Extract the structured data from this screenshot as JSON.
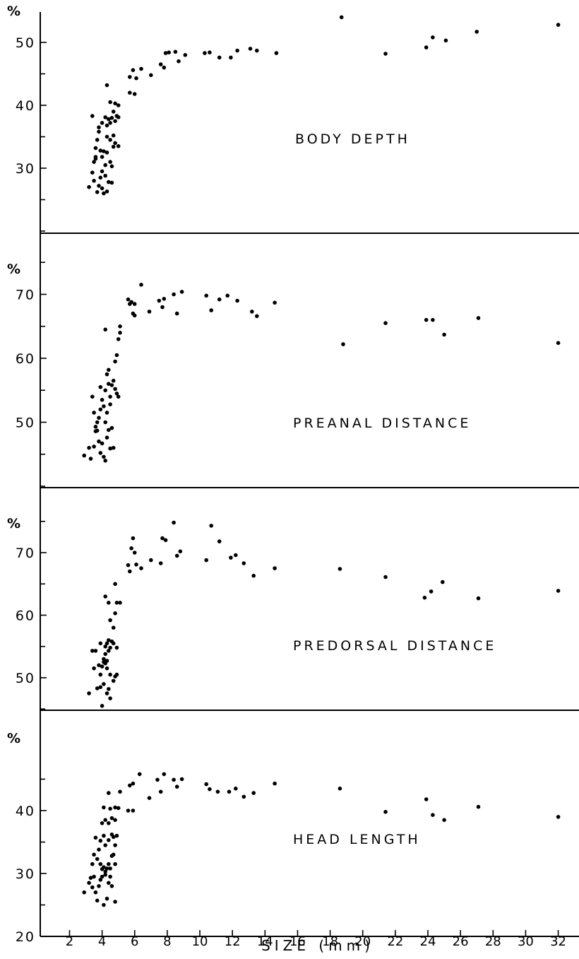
{
  "colors": {
    "ink": "#000000",
    "background": "#ffffff"
  },
  "x_axis": {
    "title": "SIZE (mm)",
    "ticks": [
      2,
      4,
      6,
      8,
      10,
      12,
      14,
      16,
      18,
      20,
      22,
      24,
      26,
      28,
      30,
      32
    ],
    "tick_labels": [
      "2",
      "4",
      "6",
      "8",
      "10",
      "12",
      "14",
      "16",
      "18",
      "20",
      "22",
      "24",
      "26",
      "28",
      "30",
      "32"
    ],
    "range": [
      0,
      33
    ]
  },
  "chart_data": [
    {
      "type": "scatter",
      "label": "BODY DEPTH",
      "unit": "%",
      "xlabel": "SIZE (mm)",
      "ylim": [
        20,
        55
      ],
      "y_ticks": [
        30,
        40,
        50
      ],
      "y_tick_labels": [
        "30",
        "40",
        "50"
      ],
      "grid": false,
      "points": [
        [
          3.2,
          27.0
        ],
        [
          3.4,
          29.3
        ],
        [
          3.5,
          31.0
        ],
        [
          3.6,
          31.5
        ],
        [
          3.5,
          28.0
        ],
        [
          3.7,
          26.2
        ],
        [
          3.8,
          27.2
        ],
        [
          3.9,
          28.5
        ],
        [
          4.0,
          26.8
        ],
        [
          4.1,
          26.0
        ],
        [
          4.2,
          28.8
        ],
        [
          4.3,
          26.3
        ],
        [
          4.4,
          27.8
        ],
        [
          4.6,
          27.7
        ],
        [
          3.6,
          33.2
        ],
        [
          3.7,
          34.5
        ],
        [
          3.8,
          35.8
        ],
        [
          3.9,
          32.8
        ],
        [
          4.0,
          31.8
        ],
        [
          4.1,
          32.7
        ],
        [
          4.2,
          30.5
        ],
        [
          4.3,
          32.5
        ],
        [
          4.5,
          31.0
        ],
        [
          4.6,
          30.3
        ],
        [
          4.7,
          33.4
        ],
        [
          4.8,
          34.0
        ],
        [
          5.0,
          33.5
        ],
        [
          3.4,
          38.3
        ],
        [
          3.8,
          36.5
        ],
        [
          4.0,
          37.2
        ],
        [
          4.2,
          38.1
        ],
        [
          4.3,
          36.8
        ],
        [
          4.4,
          37.8
        ],
        [
          4.5,
          37.2
        ],
        [
          4.6,
          38.0
        ],
        [
          4.7,
          39.0
        ],
        [
          4.8,
          37.5
        ],
        [
          4.9,
          38.3
        ],
        [
          5.0,
          38.1
        ],
        [
          4.5,
          40.5
        ],
        [
          4.8,
          40.3
        ],
        [
          5.0,
          40.0
        ],
        [
          4.3,
          43.2
        ],
        [
          4.3,
          35.0
        ],
        [
          4.5,
          34.5
        ],
        [
          4.7,
          35.2
        ],
        [
          3.6,
          31.8
        ],
        [
          4.0,
          29.5
        ],
        [
          5.7,
          42.0
        ],
        [
          6.0,
          41.8
        ],
        [
          5.7,
          44.5
        ],
        [
          5.9,
          45.6
        ],
        [
          6.1,
          44.3
        ],
        [
          6.4,
          45.8
        ],
        [
          7.0,
          44.8
        ],
        [
          7.6,
          46.5
        ],
        [
          7.8,
          46.0
        ],
        [
          7.9,
          48.3
        ],
        [
          8.5,
          48.5
        ],
        [
          8.7,
          47.0
        ],
        [
          9.1,
          48.0
        ],
        [
          8.1,
          48.4
        ],
        [
          10.3,
          48.3
        ],
        [
          10.6,
          48.4
        ],
        [
          11.2,
          47.6
        ],
        [
          11.9,
          47.6
        ],
        [
          12.3,
          48.7
        ],
        [
          13.1,
          49.0
        ],
        [
          13.5,
          48.7
        ],
        [
          14.7,
          48.3
        ],
        [
          18.7,
          54.0
        ],
        [
          21.4,
          48.2
        ],
        [
          23.9,
          49.2
        ],
        [
          24.3,
          50.8
        ],
        [
          25.1,
          50.3
        ],
        [
          27.0,
          51.7
        ],
        [
          32.0,
          52.8
        ]
      ]
    },
    {
      "type": "scatter",
      "label": "PREANAL DISTANCE",
      "unit": "%",
      "xlabel": "SIZE (mm)",
      "ylim": [
        40,
        80
      ],
      "y_ticks": [
        50,
        60,
        70
      ],
      "y_tick_labels": [
        "50",
        "60",
        "70"
      ],
      "grid": false,
      "points": [
        [
          2.9,
          44.8
        ],
        [
          3.2,
          46.0
        ],
        [
          3.3,
          44.3
        ],
        [
          3.5,
          46.2
        ],
        [
          3.6,
          48.6
        ],
        [
          3.7,
          50.0
        ],
        [
          3.8,
          47.0
        ],
        [
          3.9,
          45.2
        ],
        [
          4.0,
          46.7
        ],
        [
          4.1,
          44.6
        ],
        [
          4.2,
          44.0
        ],
        [
          4.3,
          47.6
        ],
        [
          4.5,
          45.9
        ],
        [
          4.7,
          46.0
        ],
        [
          3.4,
          54.0
        ],
        [
          3.5,
          51.5
        ],
        [
          3.6,
          49.3
        ],
        [
          3.7,
          48.7
        ],
        [
          3.8,
          50.7
        ],
        [
          3.9,
          52.0
        ],
        [
          4.0,
          53.5
        ],
        [
          4.1,
          52.5
        ],
        [
          4.2,
          50.0
        ],
        [
          4.3,
          51.5
        ],
        [
          4.4,
          48.8
        ],
        [
          4.5,
          52.8
        ],
        [
          4.6,
          49.1
        ],
        [
          3.9,
          55.5
        ],
        [
          4.2,
          55.0
        ],
        [
          4.3,
          57.5
        ],
        [
          4.4,
          56.0
        ],
        [
          4.5,
          54.0
        ],
        [
          4.6,
          55.8
        ],
        [
          4.7,
          56.5
        ],
        [
          4.8,
          55.2
        ],
        [
          4.9,
          54.5
        ],
        [
          5.0,
          54.0
        ],
        [
          4.4,
          58.2
        ],
        [
          4.8,
          59.5
        ],
        [
          4.9,
          60.5
        ],
        [
          5.0,
          63.0
        ],
        [
          5.1,
          64.0
        ],
        [
          5.1,
          65.0
        ],
        [
          4.2,
          64.5
        ],
        [
          5.6,
          69.2
        ],
        [
          5.7,
          68.5
        ],
        [
          5.8,
          68.8
        ],
        [
          5.9,
          67.0
        ],
        [
          6.0,
          68.5
        ],
        [
          6.0,
          66.7
        ],
        [
          6.4,
          71.5
        ],
        [
          6.9,
          67.3
        ],
        [
          7.5,
          69.0
        ],
        [
          7.7,
          68.0
        ],
        [
          7.8,
          69.3
        ],
        [
          8.4,
          70.0
        ],
        [
          8.6,
          67.0
        ],
        [
          8.9,
          70.4
        ],
        [
          10.4,
          69.8
        ],
        [
          10.7,
          67.5
        ],
        [
          11.2,
          69.2
        ],
        [
          11.7,
          69.8
        ],
        [
          12.3,
          69.0
        ],
        [
          13.2,
          67.3
        ],
        [
          13.5,
          66.6
        ],
        [
          14.6,
          68.7
        ],
        [
          18.8,
          62.2
        ],
        [
          21.4,
          65.5
        ],
        [
          23.9,
          66.0
        ],
        [
          24.3,
          66.0
        ],
        [
          25.0,
          63.7
        ],
        [
          27.1,
          66.3
        ],
        [
          32.0,
          62.4
        ]
      ]
    },
    {
      "type": "scatter",
      "label": "PREDORSAL DISTANCE",
      "unit": "%",
      "xlabel": "SIZE (mm)",
      "ylim": [
        45,
        80
      ],
      "y_ticks": [
        50,
        60,
        70
      ],
      "y_tick_labels": [
        "50",
        "60",
        "70"
      ],
      "grid": false,
      "points": [
        [
          3.2,
          47.5
        ],
        [
          3.7,
          48.3
        ],
        [
          3.9,
          48.5
        ],
        [
          4.0,
          45.5
        ],
        [
          4.1,
          49.0
        ],
        [
          4.3,
          47.5
        ],
        [
          4.4,
          48.2
        ],
        [
          4.5,
          46.7
        ],
        [
          4.7,
          49.5
        ],
        [
          4.8,
          50.2
        ],
        [
          4.9,
          50.5
        ],
        [
          3.4,
          54.3
        ],
        [
          3.5,
          51.5
        ],
        [
          3.6,
          54.3
        ],
        [
          3.8,
          52.0
        ],
        [
          3.9,
          50.5
        ],
        [
          4.0,
          51.8
        ],
        [
          4.1,
          53.0
        ],
        [
          4.2,
          52.3
        ],
        [
          4.3,
          51.5
        ],
        [
          4.5,
          50.5
        ],
        [
          4.2,
          53.8
        ],
        [
          4.1,
          52.5
        ],
        [
          4.3,
          52.7
        ],
        [
          3.9,
          55.5
        ],
        [
          4.3,
          55.5
        ],
        [
          4.4,
          56.0
        ],
        [
          4.5,
          54.8
        ],
        [
          4.6,
          55.8
        ],
        [
          4.7,
          55.5
        ],
        [
          4.9,
          54.8
        ],
        [
          4.2,
          55.0
        ],
        [
          4.4,
          54.3
        ],
        [
          4.5,
          59.2
        ],
        [
          4.7,
          58.0
        ],
        [
          4.8,
          60.3
        ],
        [
          4.2,
          63.0
        ],
        [
          4.4,
          62.0
        ],
        [
          4.8,
          65.0
        ],
        [
          4.9,
          62.0
        ],
        [
          5.1,
          62.0
        ],
        [
          5.6,
          68.0
        ],
        [
          5.7,
          67.0
        ],
        [
          5.8,
          70.7
        ],
        [
          5.9,
          72.3
        ],
        [
          6.0,
          70.0
        ],
        [
          6.1,
          68.1
        ],
        [
          6.4,
          67.5
        ],
        [
          7.0,
          68.8
        ],
        [
          7.6,
          68.3
        ],
        [
          7.7,
          72.3
        ],
        [
          7.9,
          72.0
        ],
        [
          8.4,
          74.8
        ],
        [
          8.6,
          69.5
        ],
        [
          8.8,
          70.2
        ],
        [
          10.4,
          68.8
        ],
        [
          10.7,
          74.3
        ],
        [
          11.2,
          71.8
        ],
        [
          11.9,
          69.2
        ],
        [
          12.2,
          69.6
        ],
        [
          12.7,
          68.3
        ],
        [
          13.3,
          66.3
        ],
        [
          14.6,
          67.5
        ],
        [
          18.6,
          67.4
        ],
        [
          21.4,
          66.1
        ],
        [
          23.8,
          62.8
        ],
        [
          24.2,
          63.8
        ],
        [
          24.9,
          65.3
        ],
        [
          27.1,
          62.7
        ],
        [
          32.0,
          63.9
        ]
      ]
    },
    {
      "type": "scatter",
      "label": "HEAD LENGTH",
      "unit": "%",
      "xlabel": "SIZE (mm)",
      "ylim": [
        20,
        47
      ],
      "y_ticks": [
        20,
        30,
        40
      ],
      "y_tick_labels": [
        "20",
        "30",
        "40"
      ],
      "grid": false,
      "points": [
        [
          2.9,
          27.0
        ],
        [
          3.2,
          28.5
        ],
        [
          3.3,
          29.3
        ],
        [
          3.4,
          27.8
        ],
        [
          3.5,
          29.5
        ],
        [
          3.6,
          27.0
        ],
        [
          3.7,
          25.7
        ],
        [
          3.8,
          28.0
        ],
        [
          3.9,
          29.0
        ],
        [
          4.0,
          29.5
        ],
        [
          4.1,
          25.0
        ],
        [
          4.2,
          29.8
        ],
        [
          4.3,
          26.0
        ],
        [
          4.4,
          28.5
        ],
        [
          4.5,
          29.5
        ],
        [
          4.6,
          28.0
        ],
        [
          4.8,
          25.5
        ],
        [
          3.4,
          31.5
        ],
        [
          3.5,
          33.0
        ],
        [
          3.7,
          32.3
        ],
        [
          3.8,
          33.8
        ],
        [
          3.9,
          31.5
        ],
        [
          4.0,
          30.7
        ],
        [
          4.1,
          31.0
        ],
        [
          4.2,
          30.3
        ],
        [
          4.3,
          30.8
        ],
        [
          4.4,
          31.5
        ],
        [
          4.5,
          30.8
        ],
        [
          4.6,
          32.8
        ],
        [
          4.7,
          33.0
        ],
        [
          4.8,
          31.5
        ],
        [
          3.6,
          35.7
        ],
        [
          3.9,
          35.2
        ],
        [
          4.1,
          36.0
        ],
        [
          4.2,
          34.5
        ],
        [
          4.4,
          35.3
        ],
        [
          4.6,
          36.2
        ],
        [
          4.7,
          35.8
        ],
        [
          4.8,
          34.5
        ],
        [
          4.9,
          36.0
        ],
        [
          4.0,
          38.0
        ],
        [
          4.2,
          38.5
        ],
        [
          4.4,
          38.0
        ],
        [
          4.6,
          38.8
        ],
        [
          4.8,
          38.5
        ],
        [
          4.1,
          40.5
        ],
        [
          4.5,
          40.3
        ],
        [
          4.8,
          40.5
        ],
        [
          5.0,
          40.4
        ],
        [
          4.4,
          42.8
        ],
        [
          5.1,
          43.0
        ],
        [
          5.6,
          40.0
        ],
        [
          5.9,
          40.0
        ],
        [
          5.7,
          44.0
        ],
        [
          5.9,
          44.3
        ],
        [
          6.3,
          45.8
        ],
        [
          6.9,
          42.0
        ],
        [
          7.4,
          44.9
        ],
        [
          7.6,
          43.0
        ],
        [
          7.8,
          45.8
        ],
        [
          8.4,
          44.9
        ],
        [
          8.6,
          43.8
        ],
        [
          8.9,
          45.0
        ],
        [
          10.4,
          44.2
        ],
        [
          10.6,
          43.4
        ],
        [
          11.1,
          43.0
        ],
        [
          11.8,
          43.0
        ],
        [
          12.2,
          43.5
        ],
        [
          12.7,
          42.2
        ],
        [
          13.3,
          42.8
        ],
        [
          14.6,
          44.3
        ],
        [
          18.6,
          43.5
        ],
        [
          21.4,
          39.8
        ],
        [
          23.9,
          41.8
        ],
        [
          24.3,
          39.3
        ],
        [
          25.0,
          38.5
        ],
        [
          27.1,
          40.6
        ],
        [
          32.0,
          39.0
        ]
      ]
    }
  ]
}
